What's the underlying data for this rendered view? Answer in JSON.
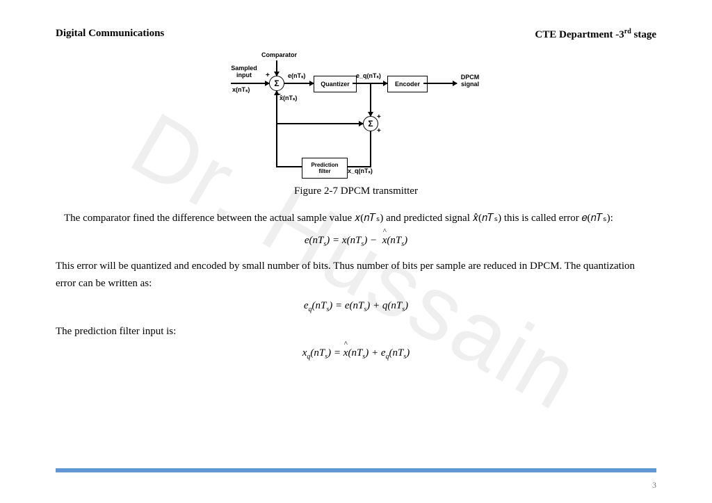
{
  "header": {
    "left": "Digital Communications",
    "right_prefix": "CTE Department -3",
    "right_sup": "rd",
    "right_suffix": " stage"
  },
  "watermark": "Dr. Hussain",
  "diagram": {
    "labels": {
      "sampled_input": "Sampled\ninput",
      "x_in": "x(nTₛ)",
      "comparator": "Comparator",
      "e": "e(nTₛ)",
      "xhat": "x̂(nTₛ)",
      "quantizer": "Quantizer",
      "eq": "e_q(nTₛ)",
      "encoder": "Encoder",
      "out": "DPCM\nsignal",
      "pred": "Prediction\nfilter",
      "xq": "x_q(nTₛ)"
    }
  },
  "caption": "Figure 2-7 DPCM transmitter",
  "para1": "The comparator fined the difference between the actual sample value 𝑥(𝑛𝑇ₛ) and predicted signal 𝑥̂(𝑛𝑇ₛ) this is called error 𝑒(𝑛𝑇ₛ):",
  "eq1_lhs": "e(nT",
  "eq1": "e(nTₛ) = x(nTₛ) −  x̂(nTₛ)",
  "para2": "This error will be quantized and encoded by small number of bits. Thus number of bits per sample are reduced in DPCM. The quantization error can be written as:",
  "eq2": "e_q(nTₛ) = e(nTₛ) + q(nTₛ)",
  "para3": "The prediction filter input is:",
  "eq3": "x_q(nTₛ) = x̂(nTₛ) + e_q(nTₛ)",
  "page_number": "3",
  "colors": {
    "footer_bar": "#5a9bd5"
  }
}
